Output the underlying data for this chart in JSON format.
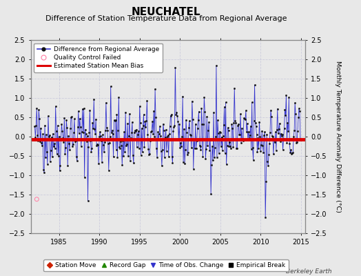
{
  "title": "NEUCHATEL",
  "subtitle": "Difference of Station Temperature Data from Regional Average",
  "ylabel": "Monthly Temperature Anomaly Difference (°C)",
  "xlabel_credit": "Berkeley Earth",
  "xlim": [
    1981.5,
    2015.5
  ],
  "ylim": [
    -2.5,
    2.5
  ],
  "yticks": [
    -2.5,
    -2,
    -1.5,
    -1,
    -0.5,
    0,
    0.5,
    1,
    1.5,
    2,
    2.5
  ],
  "xticks": [
    1985,
    1990,
    1995,
    2000,
    2005,
    2010,
    2015
  ],
  "bias_value": -0.07,
  "background_color": "#e8e8e8",
  "plot_bg_color": "#e8e8e8",
  "grid_color": "#ccccdd",
  "line_color": "#3333cc",
  "dot_color": "#111111",
  "bias_color": "#dd0000",
  "qc_fail_color": "#ff88aa",
  "title_fontsize": 11,
  "subtitle_fontsize": 8,
  "seed": 42,
  "n_points": 396,
  "start_year": 1982.0,
  "months_per_year": 12
}
